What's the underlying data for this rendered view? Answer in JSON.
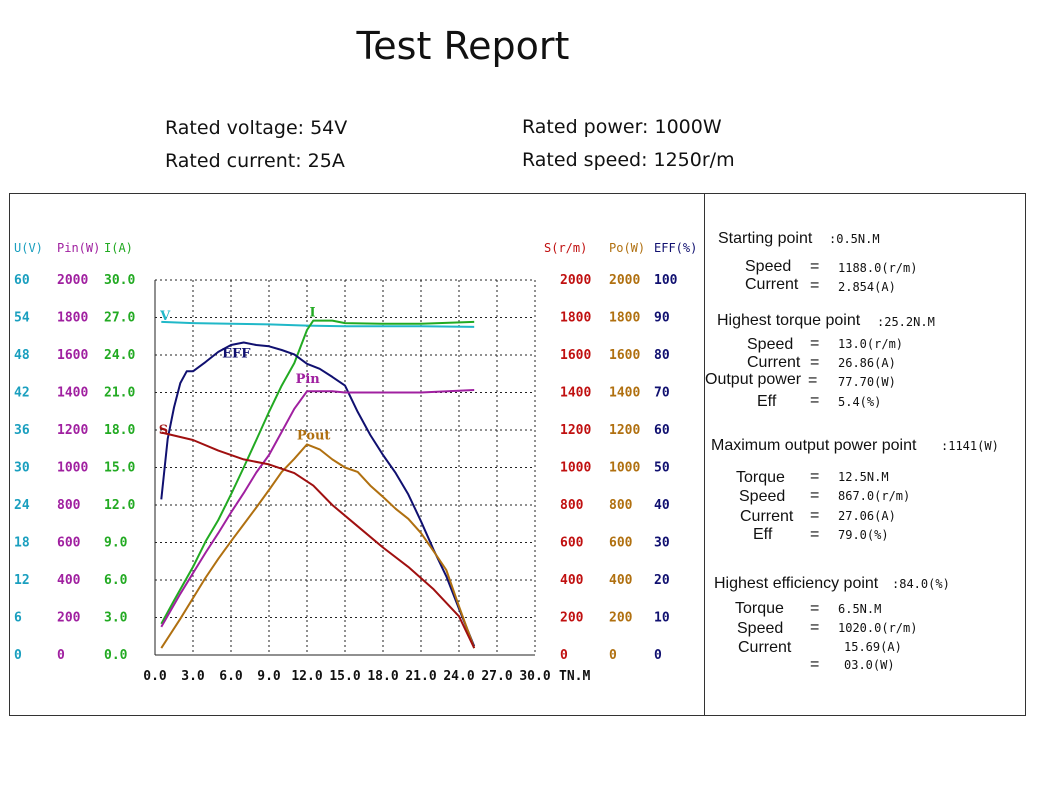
{
  "title": "Test Report",
  "rated": {
    "voltage": "Rated voltage: 54V",
    "current": "Rated current: 25A",
    "power": "Rated power: 1000W",
    "speed": "Rated speed: 1250r/m"
  },
  "chart_data": {
    "type": "line",
    "xlabel": "TN.M",
    "x_ticks": [
      "0.0",
      "3.0",
      "6.0",
      "9.0",
      "12.0",
      "15.0",
      "18.0",
      "21.0",
      "24.0",
      "27.0",
      "30.0"
    ],
    "xlim": [
      0,
      30
    ],
    "axes_left": [
      {
        "header": "U(V)",
        "color": "#1a9fbf",
        "ticks": [
          "0",
          "6",
          "12",
          "18",
          "24",
          "30",
          "36",
          "42",
          "48",
          "54",
          "60"
        ]
      },
      {
        "header": "Pin(W)",
        "color": "#a020a0",
        "ticks": [
          "0",
          "200",
          "400",
          "600",
          "800",
          "1000",
          "1200",
          "1400",
          "1600",
          "1800",
          "2000"
        ]
      },
      {
        "header": "I(A)",
        "color": "#22aa22",
        "ticks": [
          "0.0",
          "3.0",
          "6.0",
          "9.0",
          "12.0",
          "15.0",
          "18.0",
          "21.0",
          "24.0",
          "27.0",
          "30.0"
        ]
      }
    ],
    "axes_right": [
      {
        "header": "S(r/m)",
        "color": "#c01010",
        "ticks": [
          "0",
          "200",
          "400",
          "600",
          "800",
          "1000",
          "1200",
          "1400",
          "1600",
          "1800",
          "2000"
        ]
      },
      {
        "header": "Po(W)",
        "color": "#b07010",
        "ticks": [
          "0",
          "200",
          "400",
          "600",
          "800",
          "1000",
          "1200",
          "1400",
          "1600",
          "1800",
          "2000"
        ]
      },
      {
        "header": "EFF(%)",
        "color": "#101070",
        "ticks": [
          "0",
          "10",
          "20",
          "30",
          "40",
          "50",
          "60",
          "70",
          "80",
          "90",
          "100"
        ]
      }
    ],
    "series": [
      {
        "name": "V",
        "label": "V",
        "color": "#20b8c8",
        "label_at": [
          0.4,
          53.6
        ],
        "points": [
          [
            0.5,
            53.3
          ],
          [
            3,
            53.1
          ],
          [
            6,
            53.0
          ],
          [
            9,
            52.9
          ],
          [
            12,
            52.7
          ],
          [
            15,
            52.6
          ],
          [
            18,
            52.6
          ],
          [
            21,
            52.6
          ],
          [
            25.2,
            52.5
          ]
        ]
      },
      {
        "name": "I",
        "label": "I",
        "color": "#22aa22",
        "label_at": [
          12.2,
          54.2
        ],
        "points": [
          [
            0.5,
            5.0
          ],
          [
            1.5,
            8.7
          ],
          [
            3,
            14.1
          ],
          [
            4,
            18.2
          ],
          [
            5,
            21.6
          ],
          [
            6,
            25.7
          ],
          [
            7,
            30.0
          ],
          [
            8,
            34.4
          ],
          [
            9,
            38.9
          ],
          [
            10,
            43.1
          ],
          [
            11,
            46.7
          ],
          [
            12,
            52.0
          ],
          [
            12.5,
            53.5
          ],
          [
            14,
            53.5
          ],
          [
            15,
            53.1
          ],
          [
            18,
            53.0
          ],
          [
            21,
            53.0
          ],
          [
            25.2,
            53.3
          ]
        ]
      },
      {
        "name": "EFF",
        "label": "EFF",
        "color": "#101070",
        "label_at": [
          5.3,
          47.6
        ],
        "points": [
          [
            0.5,
            24.9
          ],
          [
            1,
            34.6
          ],
          [
            1.5,
            39.6
          ],
          [
            2,
            43.5
          ],
          [
            2.5,
            45.4
          ],
          [
            3,
            45.4
          ],
          [
            4,
            46.9
          ],
          [
            5,
            48.5
          ],
          [
            6,
            49.6
          ],
          [
            7,
            50.0
          ],
          [
            8,
            49.6
          ],
          [
            9,
            49.4
          ],
          [
            10,
            48.8
          ],
          [
            11,
            48.1
          ],
          [
            12,
            46.6
          ],
          [
            13,
            45.8
          ],
          [
            14,
            44.5
          ],
          [
            15,
            43.1
          ],
          [
            16,
            38.9
          ],
          [
            17,
            35.2
          ],
          [
            18,
            32.0
          ],
          [
            19,
            29.1
          ],
          [
            20,
            25.7
          ],
          [
            21,
            21.4
          ],
          [
            22,
            16.8
          ],
          [
            23,
            12.6
          ],
          [
            24,
            7.4
          ],
          [
            25.2,
            1.4
          ]
        ]
      },
      {
        "name": "Pin",
        "label": "Pin",
        "color": "#a020a0",
        "label_at": [
          11.1,
          43.5
        ],
        "points": [
          [
            0.5,
            4.5
          ],
          [
            2,
            9.8
          ],
          [
            3,
            13.1
          ],
          [
            4,
            16.4
          ],
          [
            5,
            19.5
          ],
          [
            6,
            22.8
          ],
          [
            7,
            25.9
          ],
          [
            8,
            29.2
          ],
          [
            9,
            32.0
          ],
          [
            10,
            35.7
          ],
          [
            11,
            39.4
          ],
          [
            12,
            42.2
          ],
          [
            14,
            42.2
          ],
          [
            15,
            42.0
          ],
          [
            18,
            42.0
          ],
          [
            21,
            42.0
          ],
          [
            25.2,
            42.4
          ]
        ]
      },
      {
        "name": "Pout",
        "label": "Pout",
        "color": "#b07010",
        "label_at": [
          11.2,
          34.5
        ],
        "points": [
          [
            0.5,
            1.1
          ],
          [
            2,
            5.8
          ],
          [
            3,
            9.1
          ],
          [
            4,
            12.4
          ],
          [
            5,
            15.4
          ],
          [
            6,
            18.2
          ],
          [
            7,
            20.9
          ],
          [
            8,
            23.6
          ],
          [
            9,
            26.4
          ],
          [
            10,
            29.3
          ],
          [
            11,
            31.4
          ],
          [
            12,
            33.7
          ],
          [
            13,
            32.9
          ],
          [
            14,
            31.3
          ],
          [
            15,
            30.0
          ],
          [
            16,
            29.3
          ],
          [
            17,
            27.1
          ],
          [
            18,
            25.3
          ],
          [
            19,
            23.4
          ],
          [
            20,
            21.8
          ],
          [
            21,
            19.5
          ],
          [
            22,
            16.6
          ],
          [
            23,
            13.6
          ],
          [
            24,
            7.8
          ],
          [
            25.2,
            1.1
          ]
        ]
      },
      {
        "name": "S",
        "label": "S",
        "color": "#a01010",
        "label_at": [
          0.3,
          35.4
        ],
        "points": [
          [
            0.5,
            35.6
          ],
          [
            3,
            34.4
          ],
          [
            5,
            32.7
          ],
          [
            7,
            31.3
          ],
          [
            9,
            30.5
          ],
          [
            11,
            29.1
          ],
          [
            12.5,
            27.1
          ],
          [
            14,
            24.0
          ],
          [
            16,
            20.6
          ],
          [
            18,
            17.2
          ],
          [
            20,
            14.1
          ],
          [
            22,
            10.5
          ],
          [
            24,
            6.2
          ],
          [
            25.2,
            1.1
          ]
        ]
      }
    ]
  },
  "points": {
    "starting": {
      "label": "Starting point",
      "value": ":0.5N.M",
      "rows": [
        {
          "k": "Speed",
          "eq": "=",
          "v": "1188.0(r/m)"
        },
        {
          "k": "Current",
          "eq": "=",
          "v": "2.854(A)"
        }
      ]
    },
    "highest_torque": {
      "label": "Highest torque point",
      "value": ":25.2N.M",
      "rows": [
        {
          "k": "Speed",
          "eq": "=",
          "v": "13.0(r/m)"
        },
        {
          "k": "Current",
          "eq": "=",
          "v": "26.86(A)"
        },
        {
          "k": "Output power",
          "eq": "=",
          "v": "77.70(W)"
        },
        {
          "k": "Eff",
          "eq": "=",
          "v": "5.4(%)"
        }
      ]
    },
    "max_output": {
      "label": "Maximum output power point",
      "value": ":1141(W)",
      "rows": [
        {
          "k": "Torque",
          "eq": "=",
          "v": "12.5N.M"
        },
        {
          "k": "Speed",
          "eq": "=",
          "v": "867.0(r/m)"
        },
        {
          "k": "Current",
          "eq": "=",
          "v": "27.06(A)"
        },
        {
          "k": "Eff",
          "eq": "=",
          "v": "79.0(%)"
        }
      ]
    },
    "highest_eff": {
      "label": "Highest efficiency point",
      "value": ":84.0(%)",
      "rows": [
        {
          "k": "Torque",
          "eq": "=",
          "v": "6.5N.M"
        },
        {
          "k": "Speed",
          "eq": "=",
          "v": "1020.0(r/m)"
        },
        {
          "k": "Current",
          "eq": "",
          "v": "15.69(A)"
        },
        {
          "k": "",
          "eq": "=",
          "v": "03.0(W)"
        }
      ]
    }
  }
}
